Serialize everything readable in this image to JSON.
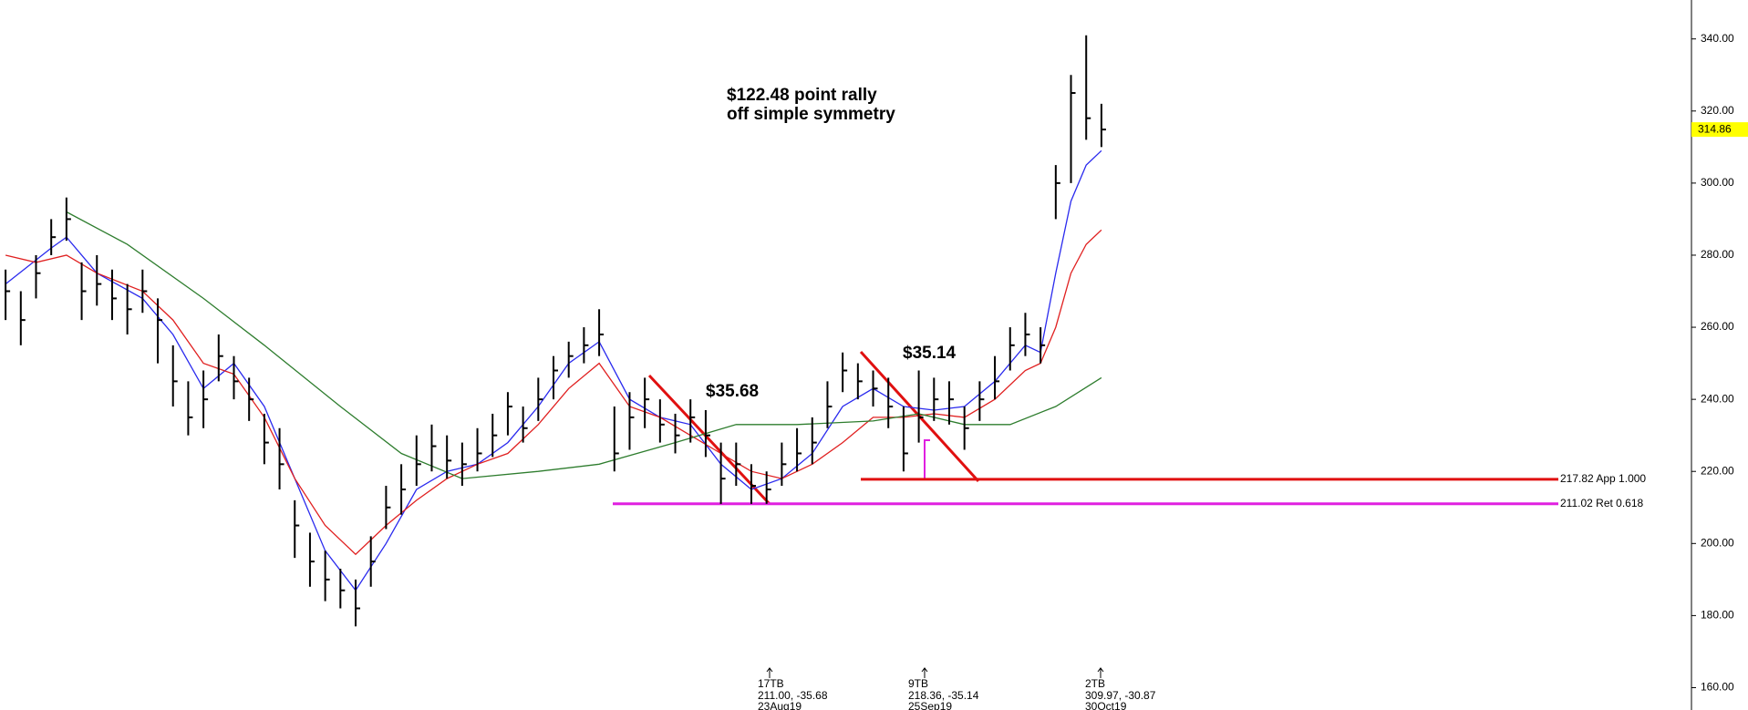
{
  "chart_data": {
    "type": "ohlc",
    "high": [
      276,
      270,
      280,
      290,
      296,
      278,
      280,
      276,
      272,
      276,
      268,
      255,
      245,
      248,
      258,
      252,
      246,
      236,
      232,
      212,
      203,
      198,
      193,
      190,
      202,
      216,
      222,
      230,
      233,
      230,
      228,
      232,
      236,
      242,
      238,
      246,
      252,
      256,
      260,
      265,
      238,
      242,
      246,
      240,
      236,
      240,
      237,
      228,
      228,
      222,
      220,
      228,
      232,
      235,
      245,
      253,
      250,
      248,
      246,
      238,
      248,
      246,
      245,
      238,
      245,
      252,
      260,
      264,
      260,
      305,
      330,
      341,
      322
    ],
    "low": [
      262,
      255,
      268,
      280,
      284,
      262,
      266,
      262,
      258,
      264,
      250,
      238,
      230,
      232,
      245,
      240,
      234,
      222,
      215,
      196,
      188,
      184,
      182,
      177,
      188,
      204,
      208,
      216,
      220,
      218,
      216,
      220,
      224,
      230,
      228,
      234,
      240,
      246,
      250,
      252,
      220,
      226,
      232,
      228,
      225,
      228,
      224,
      211,
      216,
      211,
      211,
      216,
      220,
      222,
      232,
      242,
      240,
      238,
      232,
      220,
      228,
      234,
      233,
      226,
      234,
      240,
      248,
      252,
      250,
      290,
      300,
      312,
      310
    ],
    "close": [
      270,
      262,
      275,
      285,
      290,
      270,
      272,
      268,
      265,
      270,
      262,
      245,
      235,
      240,
      252,
      245,
      240,
      228,
      222,
      205,
      195,
      190,
      187,
      182,
      195,
      210,
      215,
      222,
      227,
      223,
      222,
      225,
      230,
      238,
      232,
      240,
      248,
      252,
      255,
      258,
      225,
      235,
      240,
      233,
      230,
      235,
      230,
      218,
      222,
      216,
      215,
      222,
      225,
      228,
      238,
      248,
      245,
      243,
      238,
      225,
      235,
      240,
      240,
      232,
      240,
      245,
      255,
      258,
      255,
      300,
      325,
      318,
      314.86
    ],
    "bar_color": "#000000",
    "moving_averages": [
      {
        "color": "#2a2aee",
        "x": [
          0,
          3,
          4,
          6,
          9,
          11,
          13,
          15,
          17,
          19,
          21,
          23,
          25,
          27,
          29,
          31,
          33,
          35,
          37,
          39,
          41,
          43,
          45,
          47,
          49,
          51,
          53,
          55,
          57,
          59,
          61,
          63,
          65,
          67,
          68,
          69,
          70,
          71,
          72
        ],
        "values": [
          272,
          282,
          285,
          275,
          268,
          258,
          243,
          250,
          238,
          218,
          198,
          187,
          200,
          215,
          220,
          222,
          228,
          238,
          250,
          256,
          240,
          235,
          233,
          222,
          215,
          218,
          225,
          238,
          243,
          238,
          237,
          238,
          245,
          255,
          253,
          275,
          295,
          305,
          309
        ]
      },
      {
        "color": "#e02020",
        "x": [
          0,
          2,
          4,
          6,
          9,
          11,
          13,
          15,
          17,
          19,
          21,
          23,
          25,
          27,
          29,
          31,
          33,
          35,
          37,
          39,
          41,
          43,
          45,
          47,
          49,
          51,
          53,
          55,
          57,
          59,
          61,
          63,
          65,
          67,
          68,
          69,
          70,
          71,
          72
        ],
        "values": [
          280,
          278,
          280,
          275,
          270,
          262,
          250,
          247,
          235,
          218,
          205,
          197,
          205,
          212,
          218,
          222,
          225,
          233,
          243,
          250,
          238,
          235,
          230,
          225,
          220,
          218,
          222,
          228,
          235,
          235,
          236,
          235,
          240,
          248,
          250,
          260,
          275,
          283,
          287
        ]
      },
      {
        "color": "#2e7d2e",
        "x": [
          4,
          8,
          13,
          17,
          22,
          26,
          30,
          35,
          39,
          44,
          48,
          52,
          57,
          60,
          63,
          66,
          69,
          72
        ],
        "values": [
          292,
          283,
          268,
          255,
          238,
          225,
          218,
          220,
          222,
          228,
          233,
          233,
          234,
          236,
          233,
          233,
          238,
          246
        ]
      }
    ],
    "ylim": [
      153.8,
      350.8
    ],
    "yticks": [
      {
        "value": 160,
        "label": "160.00"
      },
      {
        "value": 180,
        "label": "180.00"
      },
      {
        "value": 200,
        "label": "200.00"
      },
      {
        "value": 220,
        "label": "220.00"
      },
      {
        "value": 240,
        "label": "240.00"
      },
      {
        "value": 260,
        "label": "260.00"
      },
      {
        "value": 280,
        "label": "280.00"
      },
      {
        "value": 300,
        "label": "300.00"
      },
      {
        "value": 320,
        "label": "320.00"
      },
      {
        "value": 340,
        "label": "340.00"
      }
    ],
    "last_price": 314.86,
    "levels": [
      {
        "value": 217.82,
        "label": "217.82 App 1.000",
        "color": "#e01010"
      },
      {
        "value": 211.02,
        "label": "211.02 Ret 0.618",
        "color": "#e020e0"
      }
    ],
    "annotations": [
      "$122.48 point rally",
      "off simple symmetry",
      "$35.68",
      "$35.14"
    ],
    "pivots": [
      {
        "marker": "17TB",
        "text": "211.00, -35.68",
        "date": "23Aug19"
      },
      {
        "marker": "9TB",
        "text": "218.36, -35.14",
        "date": "25Sep19"
      },
      {
        "marker": "2TB",
        "text": "309.97, -30.87",
        "date": "30Oct19"
      }
    ]
  }
}
